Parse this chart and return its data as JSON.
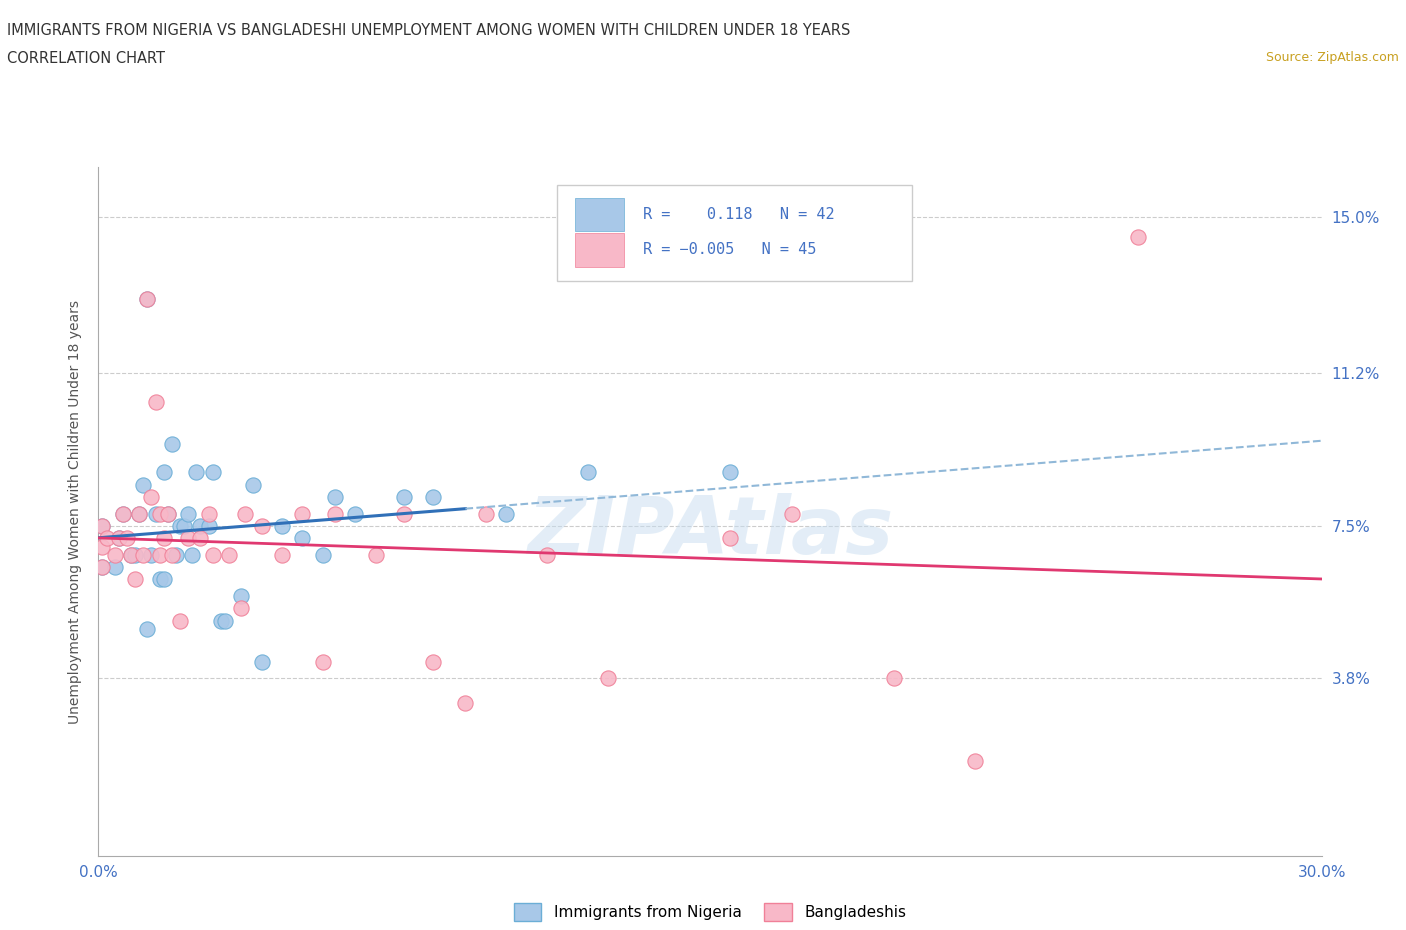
{
  "title_line1": "IMMIGRANTS FROM NIGERIA VS BANGLADESHI UNEMPLOYMENT AMONG WOMEN WITH CHILDREN UNDER 18 YEARS",
  "title_line2": "CORRELATION CHART",
  "source_text": "Source: ZipAtlas.com",
  "xlim": [
    0.0,
    0.3
  ],
  "ylim": [
    -0.005,
    0.162
  ],
  "watermark": "ZIPAtlas",
  "nigeria_color": "#a8c8e8",
  "nigeria_edge_color": "#6baed6",
  "bangladesh_color": "#f8b8c8",
  "bangladesh_edge_color": "#f08098",
  "nigeria_line_color": "#3070b8",
  "nigeria_line_color_dashed": "#90b8d8",
  "bangladesh_line_color": "#e03870",
  "tick_color": "#4472c4",
  "title_color": "#333333",
  "source_color": "#c8a020",
  "ylabel_color": "#555555",
  "grid_color": "#cccccc",
  "legend_text_color": "#4472c4",
  "nigeria_points_x": [
    0.001,
    0.001,
    0.004,
    0.005,
    0.006,
    0.008,
    0.009,
    0.01,
    0.011,
    0.012,
    0.012,
    0.013,
    0.014,
    0.015,
    0.016,
    0.016,
    0.017,
    0.018,
    0.019,
    0.02,
    0.021,
    0.022,
    0.023,
    0.024,
    0.025,
    0.027,
    0.028,
    0.03,
    0.031,
    0.035,
    0.038,
    0.04,
    0.045,
    0.05,
    0.055,
    0.058,
    0.063,
    0.075,
    0.082,
    0.1,
    0.12,
    0.155
  ],
  "nigeria_points_y": [
    0.065,
    0.075,
    0.065,
    0.072,
    0.078,
    0.068,
    0.068,
    0.078,
    0.085,
    0.05,
    0.13,
    0.068,
    0.078,
    0.062,
    0.062,
    0.088,
    0.078,
    0.095,
    0.068,
    0.075,
    0.075,
    0.078,
    0.068,
    0.088,
    0.075,
    0.075,
    0.088,
    0.052,
    0.052,
    0.058,
    0.085,
    0.042,
    0.075,
    0.072,
    0.068,
    0.082,
    0.078,
    0.082,
    0.082,
    0.078,
    0.088,
    0.088
  ],
  "bangladesh_points_x": [
    0.001,
    0.001,
    0.001,
    0.002,
    0.004,
    0.005,
    0.006,
    0.007,
    0.008,
    0.009,
    0.01,
    0.011,
    0.012,
    0.013,
    0.014,
    0.015,
    0.015,
    0.016,
    0.017,
    0.018,
    0.02,
    0.022,
    0.025,
    0.027,
    0.028,
    0.032,
    0.035,
    0.036,
    0.04,
    0.045,
    0.05,
    0.055,
    0.058,
    0.068,
    0.075,
    0.082,
    0.09,
    0.095,
    0.11,
    0.125,
    0.155,
    0.17,
    0.195,
    0.215,
    0.255
  ],
  "bangladesh_points_y": [
    0.065,
    0.07,
    0.075,
    0.072,
    0.068,
    0.072,
    0.078,
    0.072,
    0.068,
    0.062,
    0.078,
    0.068,
    0.13,
    0.082,
    0.105,
    0.068,
    0.078,
    0.072,
    0.078,
    0.068,
    0.052,
    0.072,
    0.072,
    0.078,
    0.068,
    0.068,
    0.055,
    0.078,
    0.075,
    0.068,
    0.078,
    0.042,
    0.078,
    0.068,
    0.078,
    0.042,
    0.032,
    0.078,
    0.068,
    0.038,
    0.072,
    0.078,
    0.038,
    0.018,
    0.145
  ],
  "nigeria_line_break_x": 0.09,
  "ytick_positions": [
    0.0,
    0.038,
    0.075,
    0.112,
    0.15
  ],
  "ytick_labels": [
    "",
    "3.8%",
    "7.5%",
    "11.2%",
    "15.0%"
  ],
  "xtick_positions": [
    0.0,
    0.05,
    0.1,
    0.15,
    0.2,
    0.25,
    0.3
  ],
  "xtick_labels": [
    "0.0%",
    "",
    "",
    "",
    "",
    "",
    "30.0%"
  ]
}
